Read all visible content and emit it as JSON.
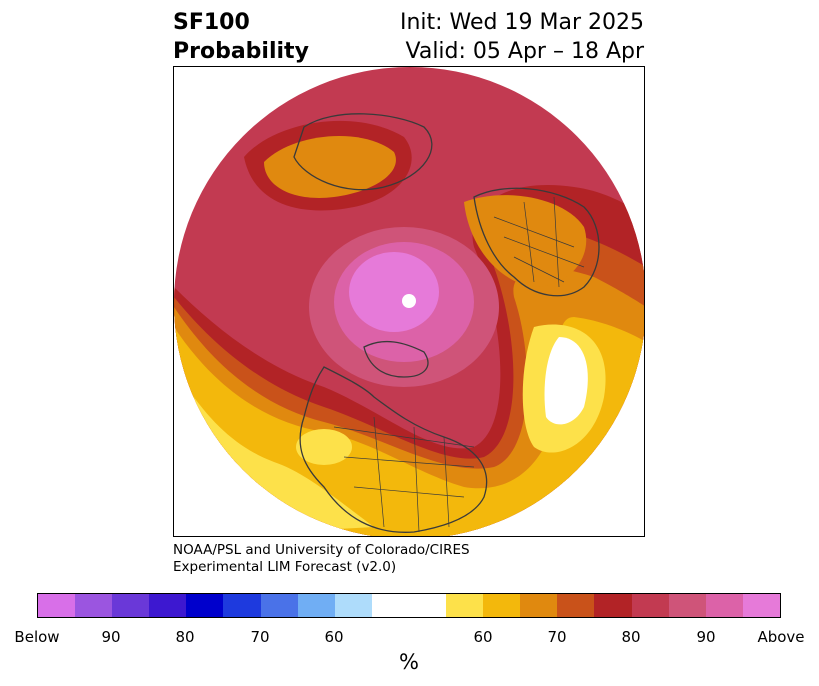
{
  "header": {
    "title_line1": "SF100",
    "title_line2": "Probability",
    "init": "Init: Wed 19 Mar 2025",
    "valid": "Valid: 05 Apr – 18 Apr"
  },
  "credit": {
    "line1": "NOAA/PSL and University of Colorado/CIRES",
    "line2": "Experimental LIM Forecast (v2.0)"
  },
  "colorbar": {
    "colors": [
      "#d86fe8",
      "#9b55e0",
      "#6a38d8",
      "#3d18d0",
      "#0000cc",
      "#1e3ade",
      "#4a72e8",
      "#70aef4",
      "#aedcfb",
      "#ffffff",
      "#ffffff",
      "#fde14a",
      "#f3b80c",
      "#e0890f",
      "#c9521a",
      "#b22326",
      "#c23a51",
      "#cf5479",
      "#dc62a8",
      "#e67ad9"
    ],
    "ticks": [
      "Below",
      "90",
      "80",
      "70",
      "60",
      "60",
      "70",
      "80",
      "90",
      "Above"
    ],
    "unit": "%"
  }
}
